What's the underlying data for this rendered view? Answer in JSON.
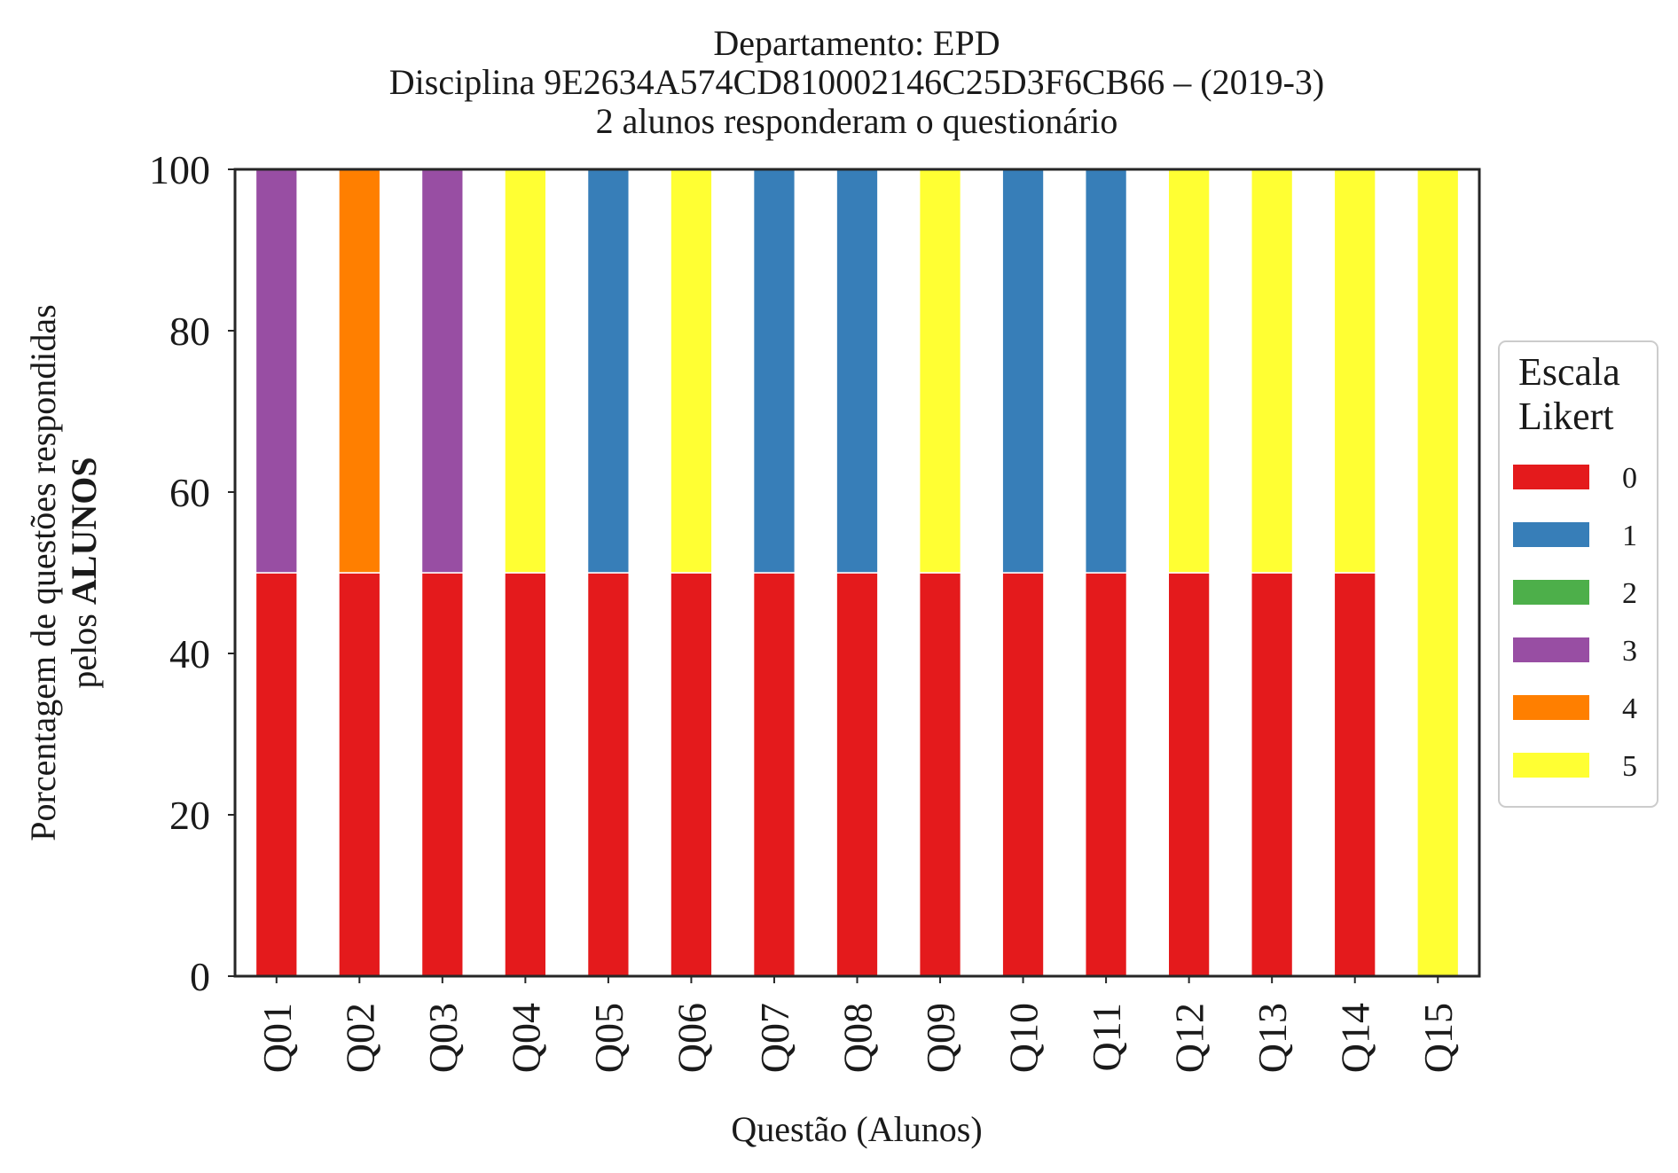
{
  "chart_data": {
    "type": "bar",
    "stacked": true,
    "title_lines": [
      "Departamento: EPD",
      "Disciplina 9E2634A574CD810002146C25D3F6CB66 – (2019-3)",
      "2 alunos responderam o questionário"
    ],
    "xlabel": "Questão (Alunos)",
    "ylabel_line1": "Porcentagem de questões respondidas",
    "ylabel_line2_prefix": "pelos",
    "ylabel_line2_bold": "ALUNOS",
    "ylim": [
      0,
      100
    ],
    "yticks": [
      "0",
      "20",
      "40",
      "60",
      "80",
      "100"
    ],
    "grid": false,
    "categories": [
      "Q01",
      "Q02",
      "Q03",
      "Q04",
      "Q05",
      "Q06",
      "Q07",
      "Q08",
      "Q09",
      "Q10",
      "Q11",
      "Q12",
      "Q13",
      "Q14",
      "Q15"
    ],
    "series": [
      {
        "name": "0",
        "color": "#e41a1c",
        "values": [
          50,
          50,
          50,
          50,
          50,
          50,
          50,
          50,
          50,
          50,
          50,
          50,
          50,
          50,
          0
        ]
      },
      {
        "name": "1",
        "color": "#377eb8",
        "values": [
          0,
          0,
          0,
          0,
          50,
          0,
          50,
          50,
          0,
          50,
          50,
          0,
          0,
          0,
          0
        ]
      },
      {
        "name": "2",
        "color": "#4daf4a",
        "values": [
          0,
          0,
          0,
          0,
          0,
          0,
          0,
          0,
          0,
          0,
          0,
          0,
          0,
          0,
          0
        ]
      },
      {
        "name": "3",
        "color": "#984ea3",
        "values": [
          50,
          0,
          50,
          0,
          0,
          0,
          0,
          0,
          0,
          0,
          0,
          0,
          0,
          0,
          0
        ]
      },
      {
        "name": "4",
        "color": "#ff7f00",
        "values": [
          0,
          50,
          0,
          0,
          0,
          0,
          0,
          0,
          0,
          0,
          0,
          0,
          0,
          0,
          0
        ]
      },
      {
        "name": "5",
        "color": "#ffff33",
        "values": [
          0,
          0,
          0,
          50,
          0,
          50,
          0,
          0,
          50,
          0,
          0,
          50,
          50,
          50,
          100
        ]
      }
    ],
    "legend": {
      "title_lines": [
        "Escala",
        "Likert"
      ],
      "placement": "center-right outside"
    }
  }
}
